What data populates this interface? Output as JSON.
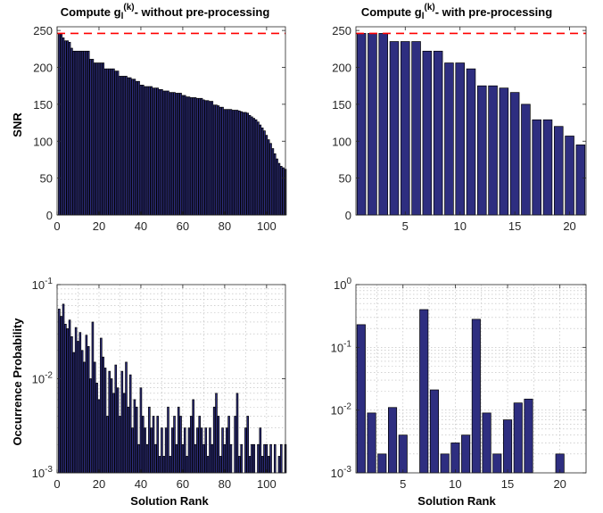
{
  "figure": {
    "panels": {
      "tl_title_main": "Compute g",
      "tl_title_sub": "l",
      "tl_title_sup": "(k)",
      "tl_title_tail": "- without pre-processing",
      "tr_title_main": "Compute g",
      "tr_title_sub": "l",
      "tr_title_sup": "(k)",
      "tr_title_tail": "- with pre-processing",
      "tl_ylabel": "SNR",
      "bl_ylabel": "Occurrence Probability",
      "bl_xlabel": "Solution Rank",
      "br_xlabel": "Solution Rank"
    }
  },
  "colors": {
    "bar_fill": "#2E2E80",
    "bar_edge": "#000000",
    "reference_line": "#FF0000",
    "grid": "#B8B8B8",
    "axes": "#262626"
  },
  "chart_data": [
    {
      "id": "top-left",
      "type": "bar",
      "title": "Compute g_l^(k)- without pre-processing",
      "xlabel": "",
      "ylabel": "SNR",
      "xlim": [
        0,
        109
      ],
      "ylim": [
        0,
        255
      ],
      "xticks": [
        0,
        20,
        40,
        60,
        80,
        100
      ],
      "yticks": [
        0,
        50,
        100,
        150,
        200,
        250
      ],
      "grid": "off",
      "reference_line": {
        "y": 246,
        "style": "dashed",
        "color": "#FF0000"
      },
      "x": [
        1,
        2,
        3,
        4,
        5,
        6,
        7,
        8,
        9,
        10,
        11,
        12,
        13,
        14,
        15,
        16,
        17,
        18,
        19,
        20,
        21,
        22,
        23,
        24,
        25,
        26,
        27,
        28,
        29,
        30,
        31,
        32,
        33,
        34,
        35,
        36,
        37,
        38,
        39,
        40,
        41,
        42,
        43,
        44,
        45,
        46,
        47,
        48,
        49,
        50,
        51,
        52,
        53,
        54,
        55,
        56,
        57,
        58,
        59,
        60,
        61,
        62,
        63,
        64,
        65,
        66,
        67,
        68,
        69,
        70,
        71,
        72,
        73,
        74,
        75,
        76,
        77,
        78,
        79,
        80,
        81,
        82,
        83,
        84,
        85,
        86,
        87,
        88,
        89,
        90,
        91,
        92,
        93,
        94,
        95,
        96,
        97,
        98,
        99,
        100,
        101,
        102,
        103,
        104,
        105,
        106,
        107,
        108,
        109
      ],
      "values": [
        246,
        246,
        240,
        236,
        236,
        234,
        226,
        222,
        222,
        222,
        222,
        222,
        222,
        222,
        222,
        211,
        211,
        206,
        206,
        206,
        206,
        206,
        198,
        198,
        198,
        198,
        198,
        195,
        195,
        188,
        188,
        188,
        188,
        186,
        186,
        184,
        184,
        181,
        181,
        176,
        176,
        174,
        174,
        174,
        174,
        172,
        172,
        172,
        170,
        170,
        168,
        168,
        168,
        166,
        166,
        166,
        165,
        165,
        165,
        162,
        162,
        160,
        160,
        159,
        159,
        159,
        158,
        158,
        158,
        156,
        155,
        155,
        154,
        154,
        149,
        149,
        148,
        146,
        146,
        143,
        143,
        143,
        143,
        142,
        142,
        142,
        141,
        140,
        139,
        139,
        138,
        135,
        133,
        131,
        129,
        126,
        122,
        118,
        114,
        108,
        102,
        97,
        90,
        83,
        76,
        70,
        66,
        64,
        62
      ],
      "color": "#2E2E80"
    },
    {
      "id": "top-right",
      "type": "bar",
      "title": "Compute g_l^(k)- with pre-processing",
      "xlabel": "",
      "ylabel": "",
      "xlim": [
        0.5,
        21.5
      ],
      "ylim": [
        0,
        255
      ],
      "xticks": [
        5,
        10,
        15,
        20
      ],
      "yticks": [
        0,
        50,
        100,
        150,
        200,
        250
      ],
      "grid": "off",
      "reference_line": {
        "y": 246,
        "style": "dashed",
        "color": "#FF0000"
      },
      "x": [
        1,
        2,
        3,
        4,
        5,
        6,
        7,
        8,
        9,
        10,
        11,
        12,
        13,
        14,
        15,
        16,
        17,
        18,
        19,
        20,
        21
      ],
      "values": [
        246,
        246,
        246,
        235,
        235,
        235,
        222,
        222,
        206,
        206,
        198,
        175,
        175,
        172,
        166,
        150,
        129,
        129,
        120,
        107,
        95
      ],
      "color": "#2E2E80"
    },
    {
      "id": "bottom-left",
      "type": "bar",
      "title": "",
      "xlabel": "Solution Rank",
      "ylabel": "Occurrence Probability",
      "yscale": "log",
      "xlim": [
        0,
        109
      ],
      "ylim": [
        0.001,
        0.1
      ],
      "xticks": [
        0,
        20,
        40,
        60,
        80,
        100
      ],
      "yticks": [
        0.001,
        0.01,
        0.1
      ],
      "ytick_labels": [
        "10^-3",
        "10^-2",
        "10^-1"
      ],
      "grid": "on",
      "x": [
        1,
        2,
        3,
        4,
        5,
        6,
        7,
        8,
        9,
        10,
        11,
        12,
        13,
        14,
        15,
        16,
        17,
        18,
        19,
        20,
        21,
        22,
        23,
        24,
        25,
        26,
        27,
        28,
        29,
        30,
        31,
        32,
        33,
        34,
        35,
        36,
        37,
        38,
        39,
        40,
        41,
        42,
        43,
        44,
        45,
        46,
        47,
        48,
        49,
        50,
        51,
        52,
        53,
        54,
        55,
        56,
        57,
        58,
        59,
        60,
        61,
        62,
        63,
        64,
        65,
        66,
        67,
        68,
        69,
        70,
        71,
        72,
        73,
        74,
        75,
        76,
        77,
        78,
        79,
        80,
        81,
        82,
        83,
        84,
        85,
        86,
        87,
        88,
        89,
        90,
        91,
        92,
        93,
        94,
        95,
        96,
        97,
        98,
        99,
        100,
        101,
        102,
        103,
        104,
        105,
        106,
        107,
        108,
        109
      ],
      "values": [
        0.055,
        0.046,
        0.062,
        0.038,
        0.034,
        0.042,
        0.028,
        0.019,
        0.035,
        0.025,
        0.031,
        0.02,
        0.015,
        0.029,
        0.022,
        0.01,
        0.04,
        0.015,
        0.009,
        0.006,
        0.027,
        0.017,
        0.013,
        0.004,
        0.012,
        0.01,
        0.007,
        0.014,
        0.008,
        0.004,
        0.012,
        0.007,
        0.015,
        0.005,
        0.011,
        0.003,
        0.006,
        0.005,
        0.002,
        0.008,
        0.004,
        0.003,
        0.002,
        0.005,
        0.003,
        0.004,
        0.002,
        0.004,
        0.0015,
        0.003,
        0.0015,
        0.003,
        0.005,
        0.0015,
        0.003,
        0.004,
        0.002,
        0.005,
        0.004,
        0.002,
        0.003,
        0.0015,
        0.003,
        0.004,
        0.006,
        0.002,
        0.003,
        0.004,
        0.003,
        0.002,
        0.003,
        0.0015,
        0.003,
        0.002,
        0.005,
        0.007,
        0.004,
        0.0015,
        0.003,
        0.002,
        0.003,
        0.004,
        0.002,
        0.001,
        0.004,
        0.007,
        0.0015,
        0.002,
        0.001,
        0.003,
        0.004,
        0.0015,
        0.002,
        0.002,
        0.001,
        0.002,
        0.003,
        0.0015,
        0.002,
        0.002,
        0.0015,
        0.002,
        0.001,
        0.002,
        0.001,
        0.0015,
        0.002,
        0.001,
        0.002
      ],
      "color": "#2E2E80"
    },
    {
      "id": "bottom-right",
      "type": "bar",
      "title": "",
      "xlabel": "Solution Rank",
      "ylabel": "",
      "yscale": "log",
      "xlim": [
        0.5,
        22.5
      ],
      "ylim": [
        0.001,
        1
      ],
      "xticks": [
        5,
        10,
        15,
        20
      ],
      "yticks": [
        0.001,
        0.01,
        0.1,
        1
      ],
      "ytick_labels": [
        "10^-3",
        "10^-2",
        "10^-1",
        "10^0"
      ],
      "grid": "on",
      "x": [
        1,
        2,
        3,
        4,
        5,
        6,
        7,
        8,
        9,
        10,
        11,
        12,
        13,
        14,
        15,
        16,
        17,
        18,
        19,
        20,
        21,
        22
      ],
      "values": [
        0.23,
        0.009,
        0.002,
        0.011,
        0.004,
        0.001,
        0.4,
        0.021,
        0.002,
        0.003,
        0.004,
        0.28,
        0.009,
        0.002,
        0.007,
        0.013,
        0.015,
        0.001,
        0.001,
        0.002,
        0.001,
        0.001
      ],
      "color": "#2E2E80"
    }
  ]
}
